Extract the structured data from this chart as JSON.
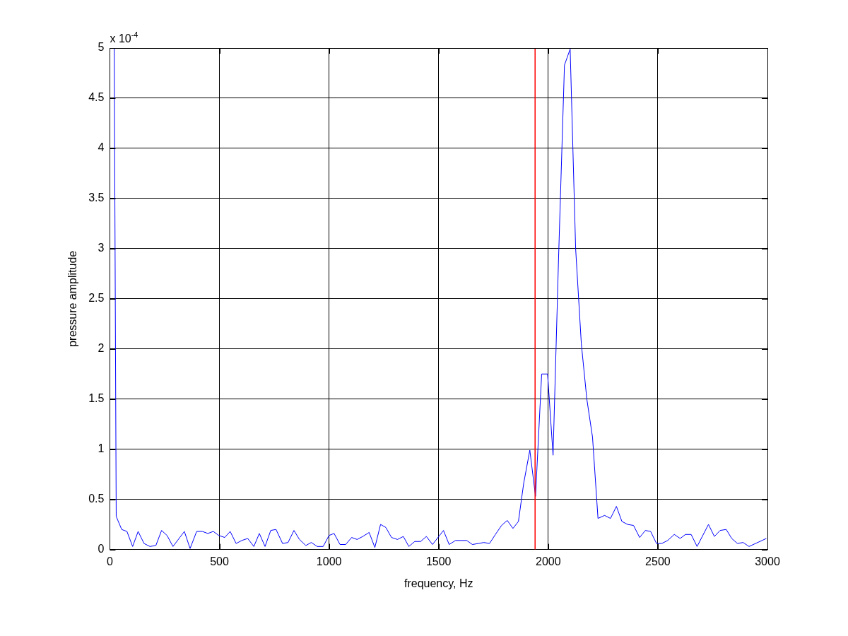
{
  "chart_data": {
    "type": "line",
    "xlabel": "frequency, Hz",
    "ylabel": "pressure amplitude",
    "annotations": [
      "x 10$^{-4}$"
    ],
    "xlim": [
      0,
      3000
    ],
    "xticks": [
      0,
      500,
      1000,
      1500,
      2000,
      2500,
      3000
    ],
    "ylim": [
      0,
      5
    ],
    "yticks": [
      0,
      0.5,
      1,
      1.5,
      2,
      2.5,
      3,
      3.5,
      4,
      4.5,
      5
    ],
    "grid": true,
    "legend": false,
    "marker": "none",
    "line_style": "solid",
    "ref_lines": [
      {
        "axis": "x",
        "value": 1940,
        "color": "#ff0000"
      }
    ],
    "series": [
      {
        "color": "#0000ff",
        "x": [
          20,
          29,
          54,
          78,
          104,
          129,
          156,
          183,
          210,
          236,
          261,
          288,
          340,
          366,
          396,
          422,
          447,
          472,
          497,
          524,
          549,
          576,
          602,
          629,
          657,
          682,
          708,
          734,
          758,
          788,
          813,
          840,
          865,
          894,
          919,
          946,
          973,
          1000,
          1023,
          1050,
          1076,
          1103,
          1128,
          1154,
          1183,
          1209,
          1235,
          1259,
          1285,
          1312,
          1339,
          1364,
          1391,
          1418,
          1444,
          1472,
          1522,
          1548,
          1577,
          1603,
          1628,
          1654,
          1682,
          1706,
          1732,
          1759,
          1787,
          1813,
          1839,
          1864,
          1888,
          1916,
          1942,
          1970,
          1997,
          2022,
          2047,
          2074,
          2100,
          2125,
          2151,
          2176,
          2202,
          2227,
          2257,
          2284,
          2311,
          2336,
          2362,
          2389,
          2417,
          2443,
          2467,
          2494,
          2518,
          2545,
          2575,
          2602,
          2626,
          2652,
          2679,
          2731,
          2758,
          2784,
          2812,
          2837,
          2863,
          2889,
          2916,
          2995
        ],
        "values": [
          5,
          0.33,
          0.2,
          0.18,
          0.03,
          0.18,
          0.06,
          0.03,
          0.04,
          0.19,
          0.14,
          0.03,
          0.18,
          0.01,
          0.18,
          0.18,
          0.16,
          0.18,
          0.14,
          0.12,
          0.18,
          0.06,
          0.09,
          0.11,
          0.03,
          0.16,
          0.03,
          0.19,
          0.2,
          0.06,
          0.07,
          0.19,
          0.1,
          0.04,
          0.07,
          0.03,
          0.03,
          0.14,
          0.16,
          0.05,
          0.05,
          0.12,
          0.1,
          0.13,
          0.17,
          0.02,
          0.25,
          0.22,
          0.12,
          0.1,
          0.13,
          0.03,
          0.08,
          0.08,
          0.13,
          0.05,
          0.19,
          0.05,
          0.09,
          0.09,
          0.09,
          0.05,
          0.06,
          0.07,
          0.06,
          0.15,
          0.24,
          0.29,
          0.21,
          0.28,
          0.66,
          0.99,
          0.53,
          1.75,
          1.75,
          0.94,
          2.9,
          4.83,
          4.99,
          3.0,
          2.05,
          1.5,
          1.12,
          0.31,
          0.34,
          0.31,
          0.43,
          0.28,
          0.25,
          0.24,
          0.12,
          0.19,
          0.18,
          0.06,
          0.06,
          0.09,
          0.15,
          0.11,
          0.15,
          0.15,
          0.03,
          0.25,
          0.13,
          0.19,
          0.2,
          0.11,
          0.06,
          0.07,
          0.03,
          0.11
        ]
      }
    ]
  }
}
